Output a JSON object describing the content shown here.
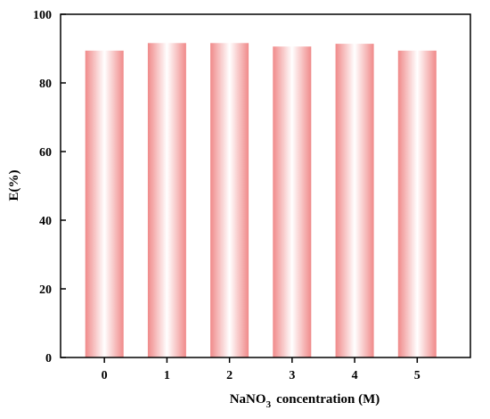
{
  "chart_data": {
    "type": "bar",
    "categories": [
      "0",
      "1",
      "2",
      "3",
      "4",
      "5"
    ],
    "values": [
      89.4,
      91.6,
      91.6,
      90.6,
      91.4,
      89.4
    ],
    "xlabel_main": "NaNO",
    "xlabel_sub": "3",
    "xlabel_rest": "concentration (M)",
    "ylabel": "E(%)",
    "ylim": [
      0,
      100
    ],
    "yticks": [
      0,
      20,
      40,
      60,
      80,
      100
    ],
    "grid": false,
    "colors": {
      "bar_edge": "#f08a8a",
      "bar_center": "#ffffff",
      "axis": "#000000"
    }
  }
}
